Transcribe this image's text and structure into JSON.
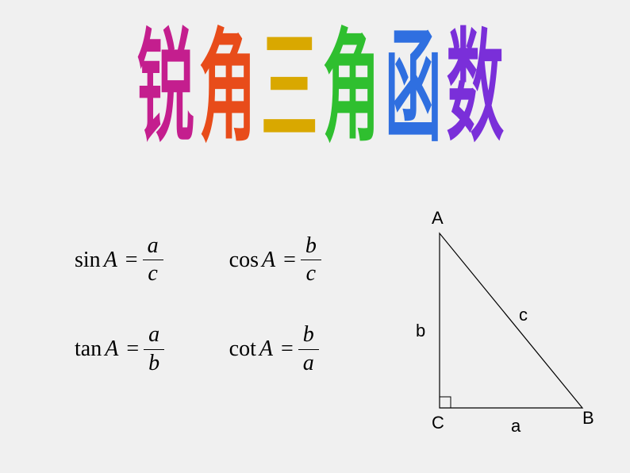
{
  "background_color": "#f0f0f0",
  "title": {
    "chars": [
      "锐",
      "角",
      "三",
      "角",
      "函",
      "数"
    ],
    "colors": [
      "#c41e8e",
      "#e84c1a",
      "#d9a800",
      "#2fbf2f",
      "#2f6fe0",
      "#7a2fd9"
    ],
    "fontsize": 96
  },
  "formulas": {
    "sin": {
      "func": "sin",
      "arg": "A",
      "num": "a",
      "den": "c"
    },
    "cos": {
      "func": "cos",
      "arg": "A",
      "num": "b",
      "den": "c"
    },
    "tan": {
      "func": "tan",
      "arg": "A",
      "num": "a",
      "den": "b"
    },
    "cot": {
      "func": "cot",
      "arg": "A",
      "num": "b",
      "den": "a"
    }
  },
  "triangle": {
    "vertices": {
      "A": "A",
      "B": "B",
      "C": "C"
    },
    "sides": {
      "a": "a",
      "b": "b",
      "c": "c"
    },
    "points": {
      "A": [
        60,
        20
      ],
      "C": [
        60,
        240
      ],
      "B": [
        240,
        240
      ]
    },
    "right_angle_size": 14,
    "stroke": "#000000",
    "stroke_width": 1.2,
    "label_fontsize": 22,
    "label_font": "Arial"
  }
}
